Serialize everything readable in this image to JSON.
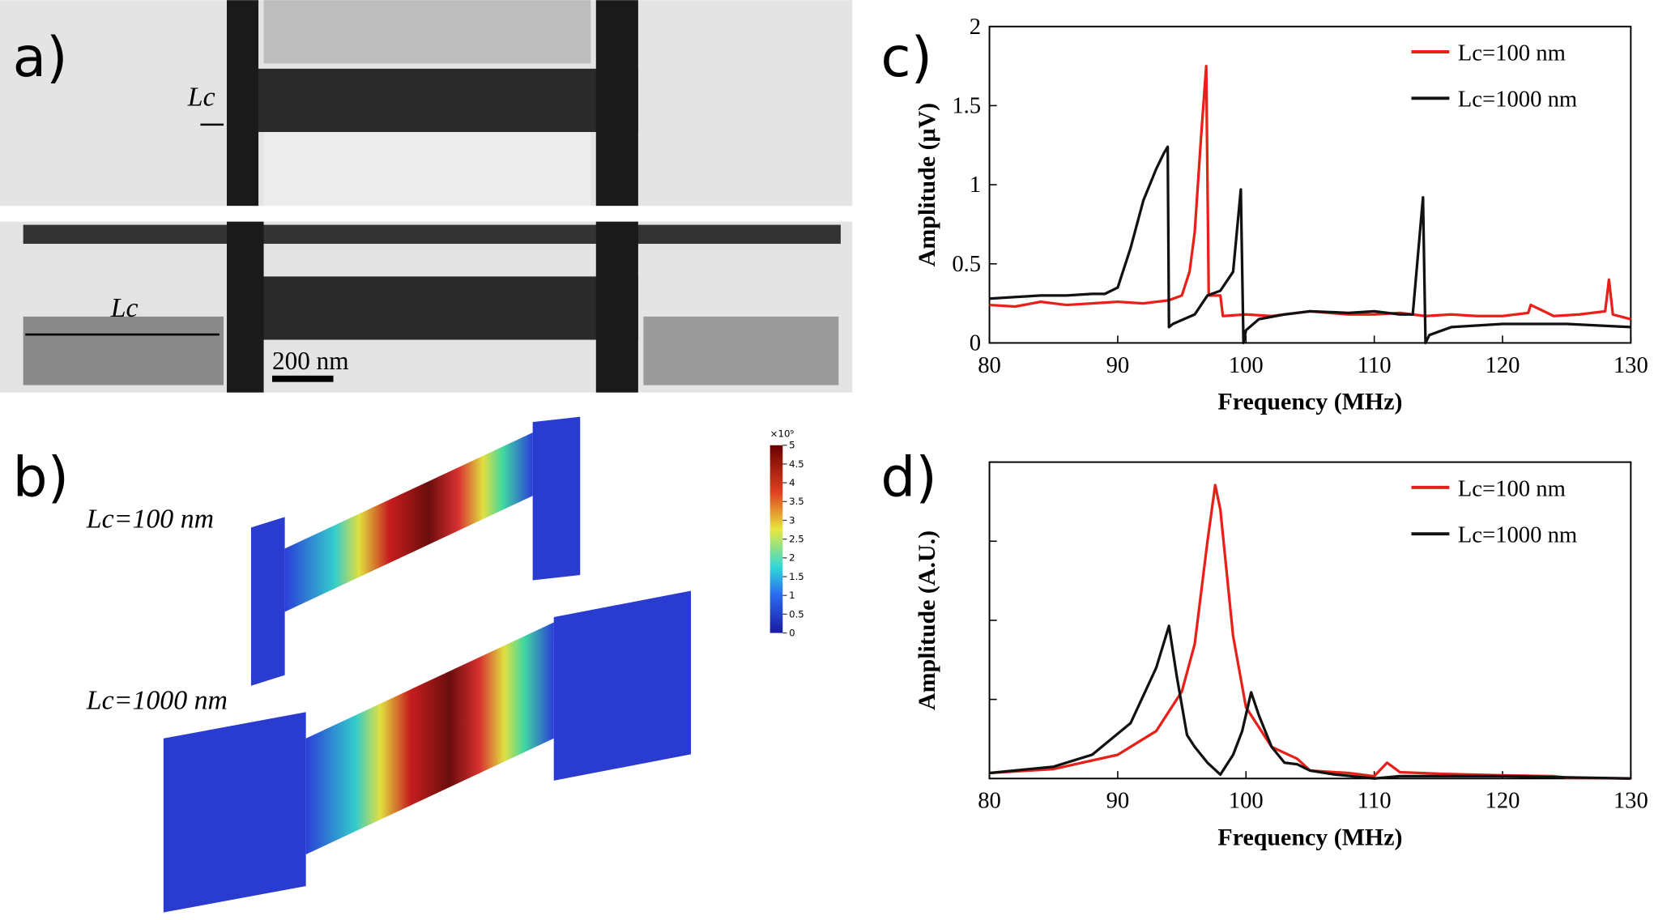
{
  "panels": {
    "a": {
      "label": "a)",
      "annotations": [
        "Lc",
        "Lc",
        "200 nm"
      ]
    },
    "b": {
      "label": "b)",
      "annotations": [
        "Lc=100 nm",
        "Lc=1000 nm"
      ],
      "colorbar": {
        "ticks": [
          0,
          0.5,
          1,
          1.5,
          2,
          2.5,
          3,
          3.5,
          4,
          4.5,
          5
        ],
        "multiplier": "×10⁹"
      }
    },
    "c": {
      "label": "c)"
    },
    "d": {
      "label": "d)"
    }
  },
  "chart_data": [
    {
      "type": "line",
      "xlabel": "Frequency (MHz)",
      "ylabel": "Amplitude (μV)",
      "xlim": [
        80,
        130
      ],
      "xticks": [
        80,
        90,
        100,
        110,
        120,
        130
      ],
      "ylim": [
        0,
        2
      ],
      "yticks": [
        0,
        0.5,
        1,
        1.5,
        2
      ],
      "ytick_labels": true,
      "legend": "upper right",
      "series": [
        {
          "name": "Lc=100 nm",
          "color": "#e8201a",
          "x": [
            80,
            82,
            84,
            86,
            88,
            90,
            92,
            94,
            95,
            95.6,
            96,
            96.5,
            96.9,
            97.1,
            98,
            98.2,
            100,
            102,
            105,
            108,
            110,
            112,
            114,
            116,
            118,
            120,
            122,
            122.2,
            124,
            126,
            128,
            128.3,
            128.6,
            130
          ],
          "values": [
            0.24,
            0.23,
            0.26,
            0.24,
            0.25,
            0.26,
            0.25,
            0.27,
            0.3,
            0.45,
            0.7,
            1.3,
            1.75,
            0.3,
            0.3,
            0.17,
            0.18,
            0.17,
            0.2,
            0.18,
            0.18,
            0.19,
            0.17,
            0.18,
            0.17,
            0.17,
            0.19,
            0.24,
            0.17,
            0.18,
            0.2,
            0.4,
            0.18,
            0.15
          ]
        },
        {
          "name": "Lc=1000 nm",
          "color": "#111111",
          "x": [
            80,
            82,
            84,
            86,
            88,
            89,
            90,
            91,
            92,
            93,
            93.6,
            93.9,
            94,
            94.3,
            96,
            97,
            98,
            99,
            99.6,
            99.8,
            100,
            101,
            103,
            105,
            108,
            110,
            112,
            113,
            113.8,
            114,
            114.3,
            116,
            120,
            125,
            130
          ],
          "values": [
            0.28,
            0.29,
            0.3,
            0.3,
            0.31,
            0.31,
            0.35,
            0.6,
            0.9,
            1.1,
            1.2,
            1.24,
            0.1,
            0.12,
            0.18,
            0.3,
            0.33,
            0.45,
            0.97,
            0.0,
            0.08,
            0.15,
            0.18,
            0.2,
            0.19,
            0.2,
            0.18,
            0.18,
            0.92,
            0.0,
            0.05,
            0.1,
            0.12,
            0.12,
            0.1
          ]
        }
      ]
    },
    {
      "type": "line",
      "xlabel": "Frequency (MHz)",
      "ylabel": "Amplitude (A.U.)",
      "xlim": [
        80,
        130
      ],
      "xticks": [
        80,
        90,
        100,
        110,
        120,
        130
      ],
      "ylim": [
        0,
        4
      ],
      "yticks": [
        0,
        1,
        2,
        3,
        4
      ],
      "ytick_labels": false,
      "legend": "upper right",
      "series": [
        {
          "name": "Lc=100 nm",
          "color": "#e8201a",
          "x": [
            80,
            85,
            90,
            93,
            95,
            96,
            97,
            97.6,
            98,
            99,
            100,
            102,
            104,
            105,
            108,
            110,
            111,
            112,
            115,
            120,
            124,
            125,
            130
          ],
          "values": [
            0.07,
            0.12,
            0.3,
            0.6,
            1.1,
            1.7,
            3.0,
            3.71,
            3.4,
            1.8,
            0.9,
            0.4,
            0.25,
            0.1,
            0.07,
            0.03,
            0.2,
            0.08,
            0.06,
            0.04,
            0.03,
            0.01,
            0.0
          ]
        },
        {
          "name": "Lc=1000 nm",
          "color": "#111111",
          "x": [
            80,
            85,
            88,
            91,
            93,
            94,
            94.6,
            95.4,
            96,
            97,
            98,
            99,
            99.7,
            100.4,
            101,
            102,
            103,
            104,
            105,
            107,
            110,
            112,
            120,
            130
          ],
          "values": [
            0.07,
            0.15,
            0.3,
            0.7,
            1.4,
            1.93,
            1.3,
            0.55,
            0.4,
            0.2,
            0.05,
            0.3,
            0.6,
            1.09,
            0.8,
            0.4,
            0.2,
            0.18,
            0.1,
            0.05,
            0.0,
            0.03,
            0.03,
            0.0
          ]
        }
      ]
    }
  ]
}
